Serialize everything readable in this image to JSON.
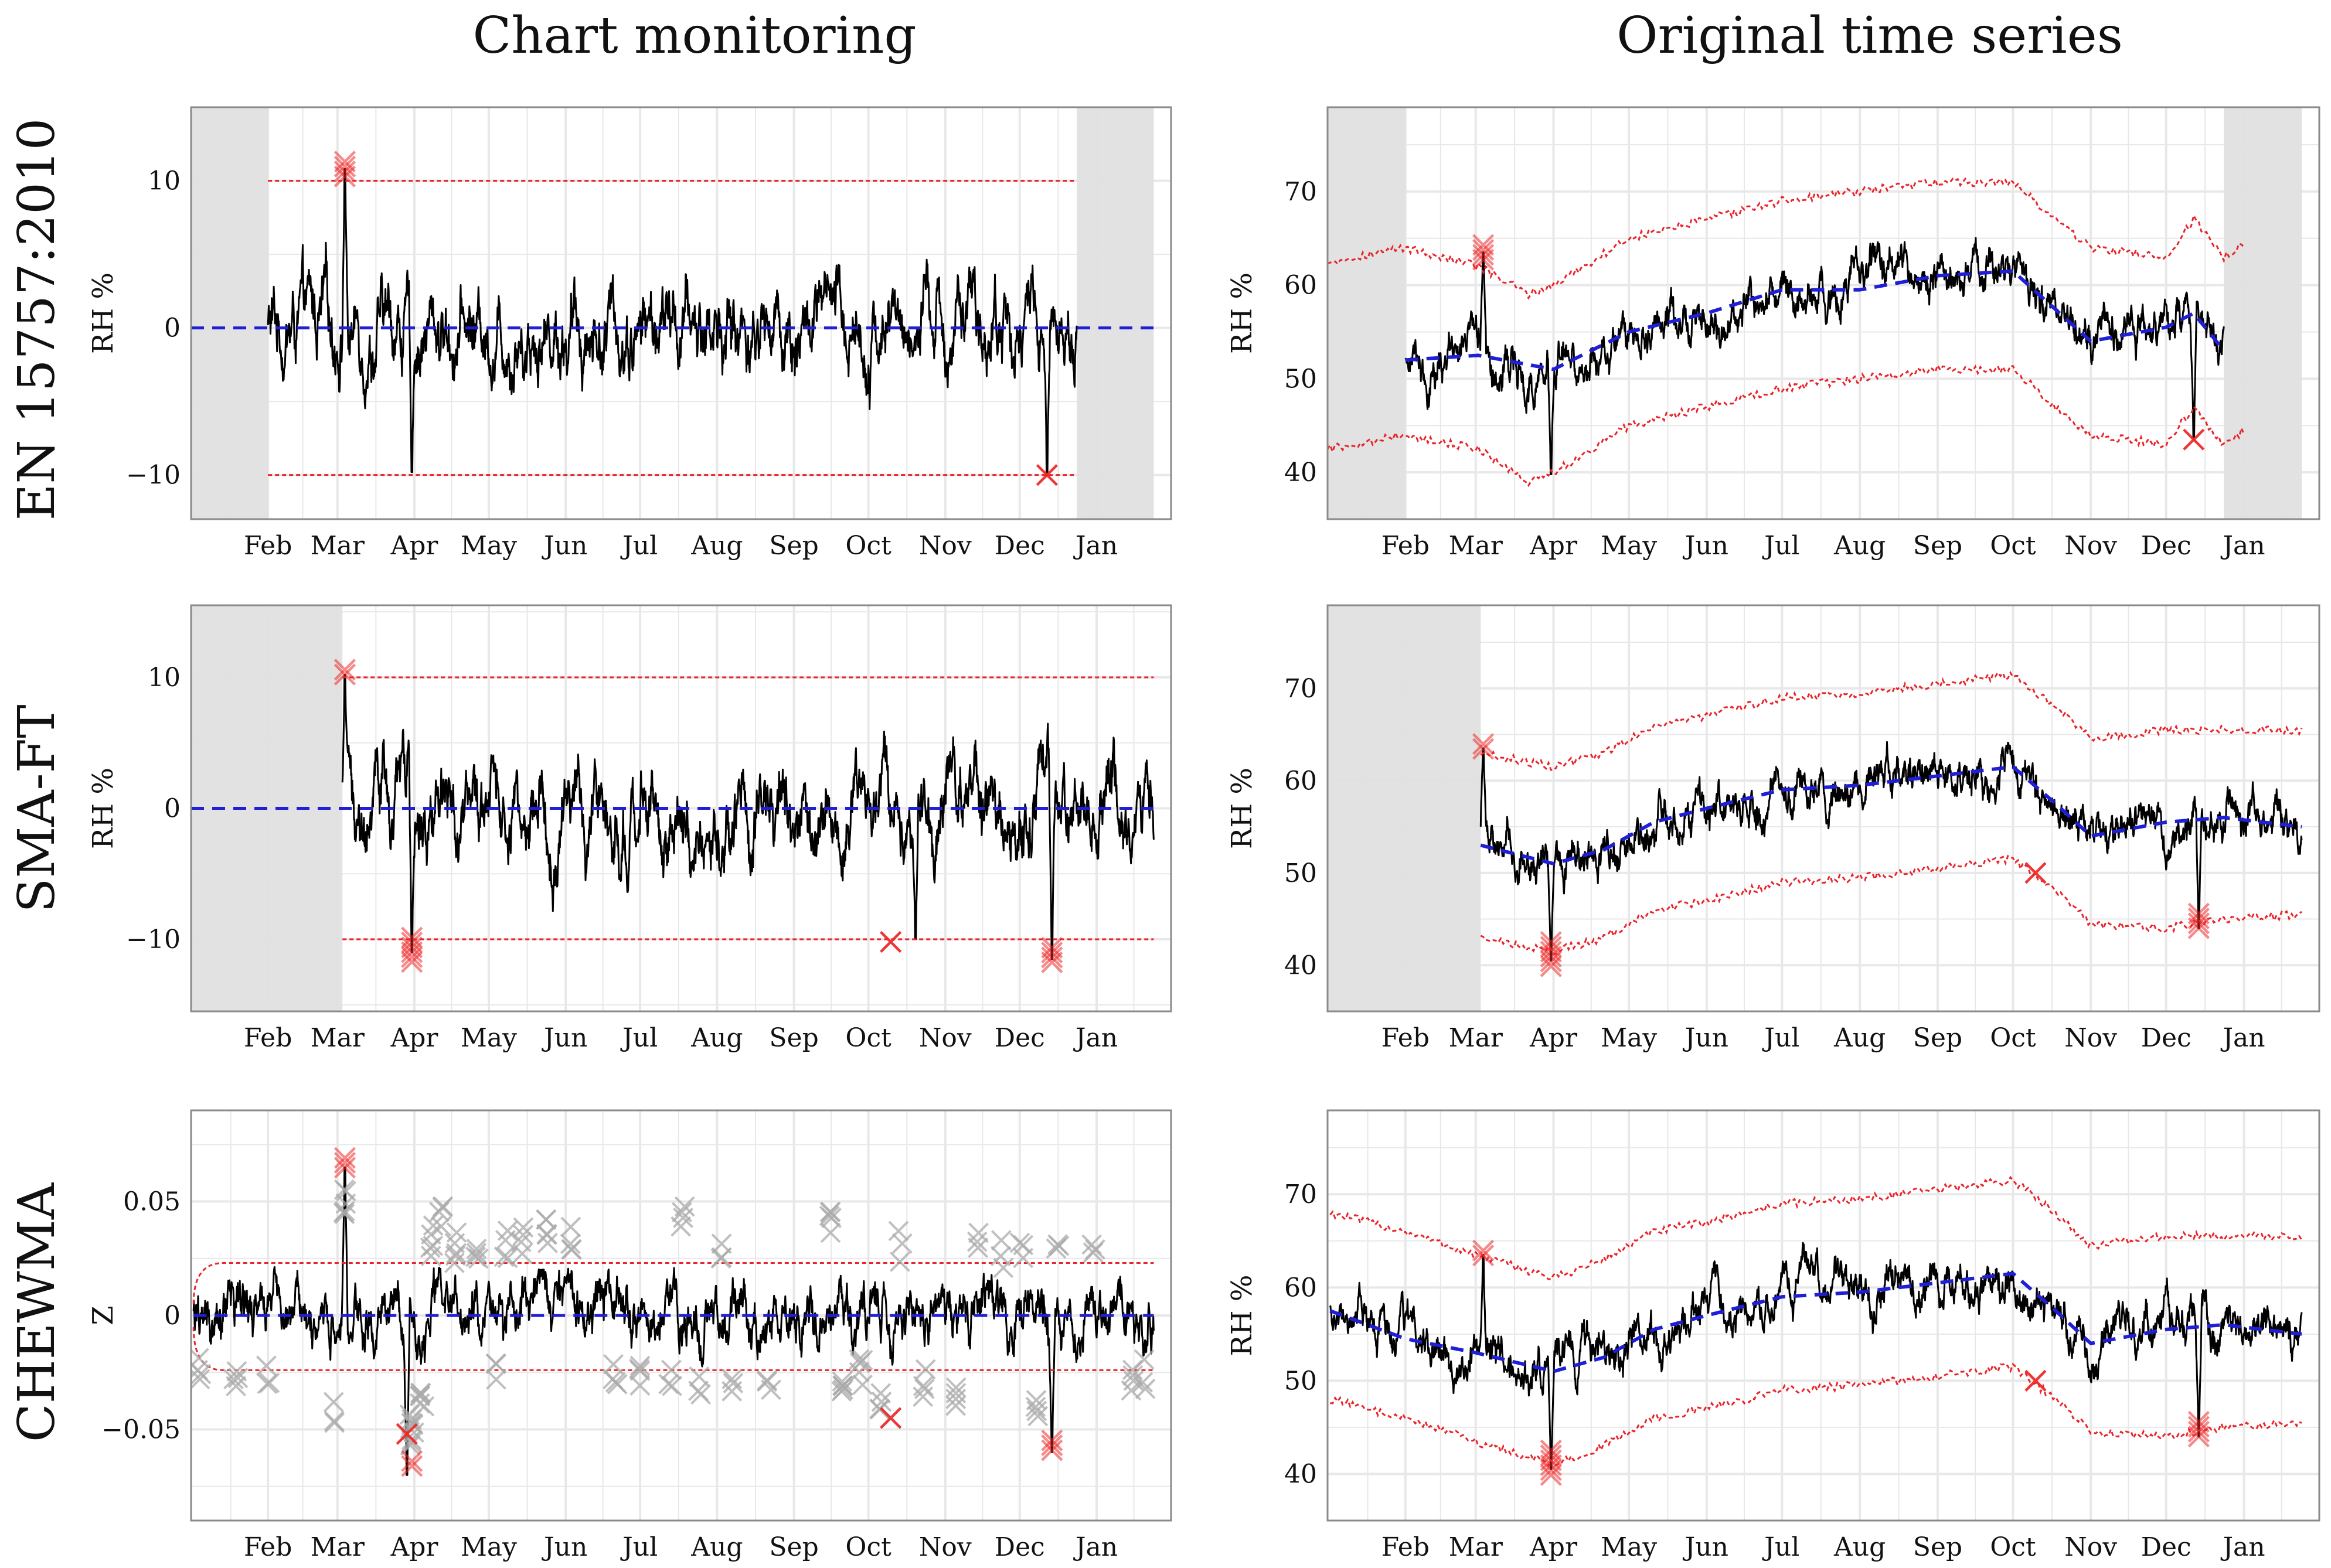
{
  "figure": {
    "column_titles": [
      "Chart monitoring",
      "Original time series"
    ],
    "row_titles": [
      "EN 15757:2010",
      "SMA-FT",
      "CHEWMA"
    ]
  },
  "colors": {
    "series": "#000000",
    "center_line": "#1f1fd6",
    "control_limit": "#e8252b",
    "alarm": "#ee2a2a",
    "out_of_control_gray": "#a9a9a9",
    "burn_in": "#e0e0e0",
    "grid": "#e8e8e8",
    "frame": "#8a8a8a"
  },
  "chart_data": [
    {
      "id": "en-monitoring",
      "type": "line",
      "title": "Chart monitoring",
      "row": "EN 15757:2010",
      "xlabel": "",
      "ylabel": "RH %",
      "x_tick_labels": [
        "Feb",
        "Mar",
        "Apr",
        "May",
        "Jun",
        "Jul",
        "Aug",
        "Sep",
        "Oct",
        "Nov",
        "Dec",
        "Jan"
      ],
      "x_tick_days": [
        31,
        59,
        90,
        120,
        151,
        181,
        212,
        243,
        273,
        304,
        334,
        365
      ],
      "xlim": [
        0,
        395
      ],
      "ylim": [
        -13,
        15
      ],
      "y_ticks": [
        -10,
        0,
        10
      ],
      "y_tick_labels": [
        "−10",
        "0",
        "10"
      ],
      "burn_in": [
        [
          0,
          31
        ],
        [
          357,
          388
        ]
      ],
      "series_range": [
        31,
        357
      ],
      "series_center": 0,
      "series_amp": 3.2,
      "center_line": {
        "x": [
          0,
          388
        ],
        "value": 0
      },
      "limits": {
        "x": [
          31,
          357
        ],
        "upper": 10,
        "lower": -10
      },
      "spikes": [
        {
          "day": 62,
          "value": 10.8
        },
        {
          "day": 89,
          "value": -9.8
        },
        {
          "day": 345,
          "value": -10
        }
      ],
      "alarms": [
        {
          "day": 62,
          "value": 10.8,
          "count": 4
        },
        {
          "day": 345,
          "value": -10,
          "count": 1
        }
      ],
      "gray_marks": []
    },
    {
      "id": "en-original",
      "type": "line",
      "title": "Original time series",
      "row": "EN 15757:2010",
      "xlabel": "",
      "ylabel": "RH %",
      "x_tick_labels": [
        "Feb",
        "Mar",
        "Apr",
        "May",
        "Jun",
        "Jul",
        "Aug",
        "Sep",
        "Oct",
        "Nov",
        "Dec",
        "Jan"
      ],
      "x_tick_days": [
        31,
        59,
        90,
        120,
        151,
        181,
        212,
        243,
        273,
        304,
        334,
        365
      ],
      "xlim": [
        0,
        395
      ],
      "ylim": [
        35,
        79
      ],
      "y_ticks": [
        40,
        50,
        60,
        70
      ],
      "y_tick_labels": [
        "40",
        "50",
        "60",
        "70"
      ],
      "burn_in": [
        [
          0,
          31
        ],
        [
          357,
          388
        ]
      ],
      "series_range": [
        31,
        357
      ],
      "trend_days": [
        31,
        60,
        90,
        120,
        151,
        181,
        212,
        243,
        273,
        304,
        334,
        345,
        357
      ],
      "trend_values": [
        52,
        52.5,
        51,
        55,
        57,
        59.5,
        59.5,
        61,
        61.5,
        54,
        55.5,
        57,
        53
      ],
      "limit_days": [
        0,
        31,
        60,
        80,
        90,
        120,
        151,
        181,
        212,
        243,
        273,
        290,
        304,
        334,
        345,
        357,
        365
      ],
      "upper_limit": [
        62.5,
        64,
        62,
        59,
        60,
        65,
        67,
        69,
        70,
        71,
        71,
        67,
        64,
        63,
        67,
        63,
        64.5
      ],
      "lower_limit": [
        42.5,
        44,
        42.5,
        39,
        40,
        45,
        47,
        49,
        50,
        51,
        51,
        47,
        44,
        43,
        47,
        43,
        44.5
      ],
      "spikes": [
        {
          "day": 62,
          "value": 63.5
        },
        {
          "day": 89,
          "value": 39.8
        },
        {
          "day": 345,
          "value": 43.5
        }
      ],
      "alarms": [
        {
          "day": 62,
          "value": 63.5,
          "count": 4
        },
        {
          "day": 345,
          "value": 43.5,
          "count": 1
        }
      ],
      "gray_marks": []
    },
    {
      "id": "sma-monitoring",
      "type": "line",
      "title": "Chart monitoring",
      "row": "SMA-FT",
      "xlabel": "",
      "ylabel": "RH %",
      "x_tick_labels": [
        "Feb",
        "Mar",
        "Apr",
        "May",
        "Jun",
        "Jul",
        "Aug",
        "Sep",
        "Oct",
        "Nov",
        "Dec",
        "Jan"
      ],
      "x_tick_days": [
        31,
        59,
        90,
        120,
        151,
        181,
        212,
        243,
        273,
        304,
        334,
        365
      ],
      "xlim": [
        0,
        395
      ],
      "ylim": [
        -15.5,
        15.5
      ],
      "y_ticks": [
        -10,
        0,
        10
      ],
      "y_tick_labels": [
        "−10",
        "0",
        "10"
      ],
      "burn_in": [
        [
          0,
          61
        ]
      ],
      "series_range": [
        61,
        388
      ],
      "series_center": 0,
      "series_amp": 3.6,
      "center_line": {
        "x": [
          0,
          388
        ],
        "value": 0
      },
      "limits": {
        "x": [
          61,
          388
        ],
        "upper": 10,
        "lower": -10
      },
      "spikes": [
        {
          "day": 62,
          "value": 10.2
        },
        {
          "day": 89,
          "value": -11
        },
        {
          "day": 292,
          "value": -10
        },
        {
          "day": 347,
          "value": -11.5
        }
      ],
      "alarms": [
        {
          "day": 62,
          "value": 10.4,
          "count": 2
        },
        {
          "day": 89,
          "value": -10.8,
          "count": 6
        },
        {
          "day": 282,
          "value": -10.2,
          "count": 1
        },
        {
          "day": 347,
          "value": -11.2,
          "count": 4
        }
      ],
      "gray_marks": []
    },
    {
      "id": "sma-original",
      "type": "line",
      "title": "Original time series",
      "row": "SMA-FT",
      "xlabel": "",
      "ylabel": "RH %",
      "x_tick_labels": [
        "Feb",
        "Mar",
        "Apr",
        "May",
        "Jun",
        "Jul",
        "Aug",
        "Sep",
        "Oct",
        "Nov",
        "Dec",
        "Jan"
      ],
      "x_tick_days": [
        31,
        59,
        90,
        120,
        151,
        181,
        212,
        243,
        273,
        304,
        334,
        365
      ],
      "xlim": [
        0,
        395
      ],
      "ylim": [
        35,
        79
      ],
      "y_ticks": [
        40,
        50,
        60,
        70
      ],
      "y_tick_labels": [
        "40",
        "50",
        "60",
        "70"
      ],
      "burn_in": [
        [
          0,
          61
        ]
      ],
      "series_range": [
        61,
        388
      ],
      "trend_days": [
        61,
        90,
        110,
        130,
        151,
        181,
        212,
        243,
        273,
        290,
        304,
        334,
        357,
        388
      ],
      "trend_values": [
        53,
        51,
        52.5,
        55.5,
        57,
        59,
        59.5,
        60.5,
        61.5,
        57.5,
        54,
        55.5,
        56,
        55
      ],
      "limit_days": [
        61,
        90,
        110,
        130,
        151,
        181,
        212,
        243,
        273,
        290,
        304,
        334,
        357,
        388
      ],
      "upper_limit": [
        63,
        61.5,
        63,
        66,
        67,
        69,
        69.5,
        70.5,
        71.5,
        68,
        64.5,
        65.5,
        65.5,
        65.5
      ],
      "lower_limit": [
        43,
        41.5,
        43,
        46,
        47,
        49,
        49.5,
        50.5,
        51.5,
        48,
        44.5,
        44,
        45,
        45.5
      ],
      "spikes": [
        {
          "day": 62,
          "value": 63.5
        },
        {
          "day": 89,
          "value": 40.5
        },
        {
          "day": 347,
          "value": 44
        }
      ],
      "alarms": [
        {
          "day": 62,
          "value": 63.7,
          "count": 2
        },
        {
          "day": 89,
          "value": 41.2,
          "count": 6
        },
        {
          "day": 282,
          "value": 50,
          "count": 1
        },
        {
          "day": 347,
          "value": 44.8,
          "count": 4
        }
      ],
      "gray_marks": []
    },
    {
      "id": "chewma-monitoring",
      "type": "line",
      "title": "Chart monitoring",
      "row": "CHEWMA",
      "xlabel": "",
      "ylabel": "Z",
      "x_tick_labels": [
        "Feb",
        "Mar",
        "Apr",
        "May",
        "Jun",
        "Jul",
        "Aug",
        "Sep",
        "Oct",
        "Nov",
        "Dec",
        "Jan"
      ],
      "x_tick_days": [
        31,
        59,
        90,
        120,
        151,
        181,
        212,
        243,
        273,
        304,
        334,
        365
      ],
      "xlim": [
        0,
        395
      ],
      "ylim": [
        -0.09,
        0.09
      ],
      "y_ticks": [
        -0.05,
        0,
        0.05
      ],
      "y_tick_labels": [
        "−0.05",
        "0",
        "0.05"
      ],
      "burn_in": [],
      "series_range": [
        1,
        388
      ],
      "series_center": 0,
      "series_amp": 0.015,
      "center_line": {
        "x": [
          1,
          388
        ],
        "value": 0
      },
      "limits": {
        "x": [
          1,
          388
        ],
        "upper": 0.023,
        "lower": -0.024
      },
      "spikes": [
        {
          "day": 62,
          "value": 0.065
        },
        {
          "day": 87,
          "value": -0.07
        },
        {
          "day": 347,
          "value": -0.06
        }
      ],
      "alarms": [
        {
          "day": 62,
          "value": 0.067,
          "count": 3
        },
        {
          "day": 87,
          "value": -0.052,
          "count": 1
        },
        {
          "day": 89,
          "value": -0.065,
          "count": 2
        },
        {
          "day": 282,
          "value": -0.045,
          "count": 1
        },
        {
          "day": 347,
          "value": -0.057,
          "count": 3
        }
      ],
      "gray_marks": [
        {
          "day": 3,
          "value": -0.025,
          "count": 4
        },
        {
          "day": 18,
          "value": -0.03,
          "count": 4
        },
        {
          "day": 31,
          "value": -0.027,
          "count": 3
        },
        {
          "day": 58,
          "value": -0.04,
          "count": 3
        },
        {
          "day": 62,
          "value": 0.05,
          "count": 6
        },
        {
          "day": 89,
          "value": -0.05,
          "count": 9
        },
        {
          "day": 93,
          "value": -0.04,
          "count": 6
        },
        {
          "day": 97,
          "value": 0.033,
          "count": 5
        },
        {
          "day": 101,
          "value": 0.042,
          "count": 4
        },
        {
          "day": 107,
          "value": 0.03,
          "count": 5
        },
        {
          "day": 115,
          "value": 0.032,
          "count": 4
        },
        {
          "day": 122,
          "value": -0.027,
          "count": 3
        },
        {
          "day": 127,
          "value": 0.03,
          "count": 4
        },
        {
          "day": 133,
          "value": 0.033,
          "count": 4
        },
        {
          "day": 143,
          "value": 0.036,
          "count": 5
        },
        {
          "day": 153,
          "value": 0.033,
          "count": 4
        },
        {
          "day": 171,
          "value": -0.025,
          "count": 4
        },
        {
          "day": 181,
          "value": -0.025,
          "count": 4
        },
        {
          "day": 193,
          "value": -0.03,
          "count": 3
        },
        {
          "day": 198,
          "value": 0.042,
          "count": 4
        },
        {
          "day": 205,
          "value": -0.028,
          "count": 3
        },
        {
          "day": 213,
          "value": 0.03,
          "count": 3
        },
        {
          "day": 218,
          "value": -0.03,
          "count": 3
        },
        {
          "day": 233,
          "value": -0.03,
          "count": 3
        },
        {
          "day": 258,
          "value": 0.04,
          "count": 5
        },
        {
          "day": 262,
          "value": -0.03,
          "count": 6
        },
        {
          "day": 270,
          "value": -0.025,
          "count": 5
        },
        {
          "day": 278,
          "value": -0.038,
          "count": 4
        },
        {
          "day": 286,
          "value": 0.03,
          "count": 3
        },
        {
          "day": 296,
          "value": -0.03,
          "count": 4
        },
        {
          "day": 309,
          "value": -0.035,
          "count": 4
        },
        {
          "day": 317,
          "value": 0.03,
          "count": 3
        },
        {
          "day": 327,
          "value": 0.028,
          "count": 3
        },
        {
          "day": 335,
          "value": 0.025,
          "count": 3
        },
        {
          "day": 341,
          "value": -0.04,
          "count": 4
        },
        {
          "day": 349,
          "value": 0.025,
          "count": 3
        },
        {
          "day": 364,
          "value": 0.032,
          "count": 3
        },
        {
          "day": 379,
          "value": -0.03,
          "count": 4
        },
        {
          "day": 384,
          "value": -0.025,
          "count": 3
        }
      ]
    },
    {
      "id": "chewma-original",
      "type": "line",
      "title": "Original time series",
      "row": "CHEWMA",
      "xlabel": "",
      "ylabel": "RH %",
      "x_tick_labels": [
        "Feb",
        "Mar",
        "Apr",
        "May",
        "Jun",
        "Jul",
        "Aug",
        "Sep",
        "Oct",
        "Nov",
        "Dec",
        "Jan"
      ],
      "x_tick_days": [
        31,
        59,
        90,
        120,
        151,
        181,
        212,
        243,
        273,
        304,
        334,
        365
      ],
      "xlim": [
        0,
        395
      ],
      "ylim": [
        35,
        79
      ],
      "y_ticks": [
        40,
        50,
        60,
        70
      ],
      "y_tick_labels": [
        "40",
        "50",
        "60",
        "70"
      ],
      "burn_in": [],
      "series_range": [
        1,
        388
      ],
      "trend_days": [
        1,
        31,
        59,
        90,
        110,
        130,
        151,
        181,
        212,
        243,
        273,
        290,
        304,
        334,
        357,
        388
      ],
      "trend_values": [
        57.5,
        54.5,
        53,
        51,
        52.5,
        55.5,
        57,
        59,
        59.5,
        60.5,
        61.5,
        57.5,
        54,
        55.5,
        56,
        55
      ],
      "limit_days": [
        1,
        31,
        59,
        90,
        110,
        130,
        151,
        181,
        212,
        243,
        273,
        290,
        304,
        334,
        357,
        388
      ],
      "upper_limit": [
        68,
        66,
        63.5,
        61,
        63,
        66,
        67,
        69,
        69.5,
        70.5,
        71.5,
        68,
        64.5,
        65.5,
        65.5,
        65.5
      ],
      "lower_limit": [
        48,
        46,
        43.5,
        41,
        43,
        46,
        47,
        49,
        49.5,
        50.5,
        51.5,
        48,
        44.5,
        44,
        45,
        45.5
      ],
      "spikes": [
        {
          "day": 62,
          "value": 63.5
        },
        {
          "day": 89,
          "value": 40.5
        },
        {
          "day": 347,
          "value": 44
        }
      ],
      "alarms": [
        {
          "day": 62,
          "value": 63.7,
          "count": 2
        },
        {
          "day": 89,
          "value": 41.2,
          "count": 6
        },
        {
          "day": 282,
          "value": 50,
          "count": 1
        },
        {
          "day": 347,
          "value": 44.8,
          "count": 4
        }
      ],
      "gray_marks": []
    }
  ]
}
